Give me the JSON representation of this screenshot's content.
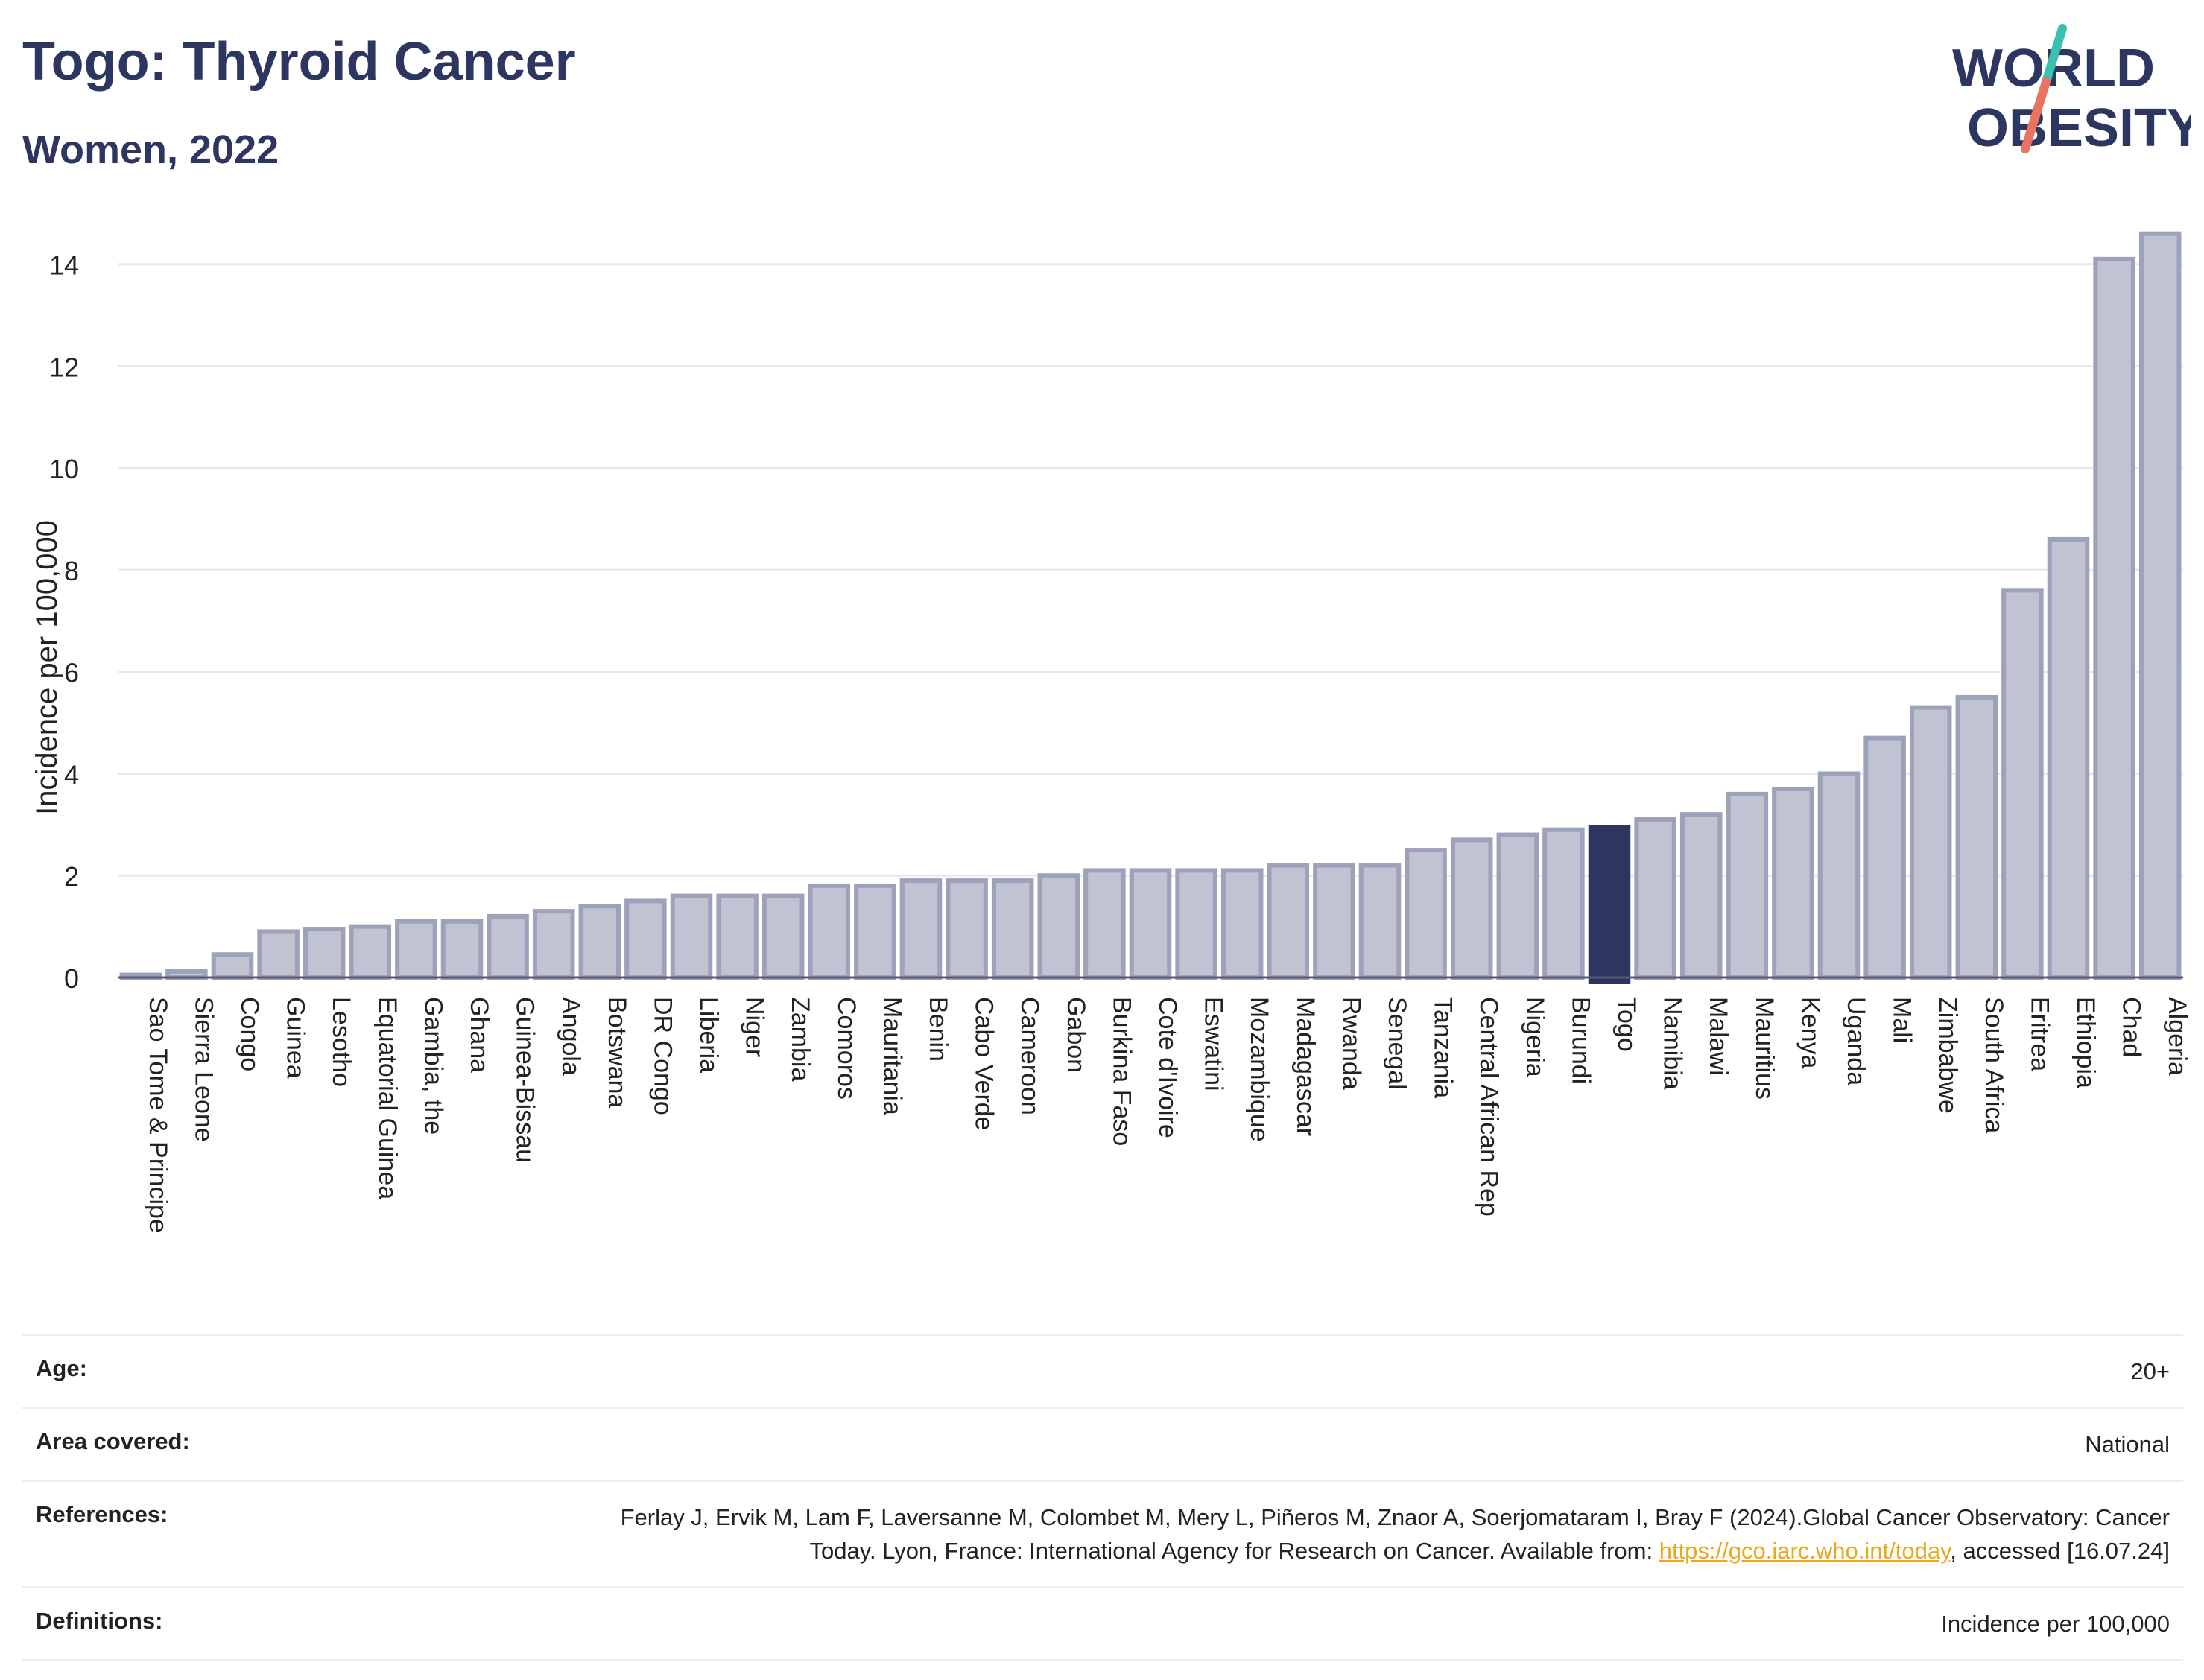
{
  "header": {
    "title": "Togo: Thyroid Cancer",
    "subtitle": "Women, 2022"
  },
  "logo": {
    "line1": "WORLD",
    "line2": "OBESITY",
    "colors": {
      "text": "#2d3561",
      "slash_top": "#3bbfb0",
      "slash_bottom": "#e8735e"
    }
  },
  "colors": {
    "bar_fill": "#c0c3d2",
    "bar_stroke": "#9da2bb",
    "highlight": "#2d3561",
    "grid": "#e8e8ee",
    "text": "#2d3561"
  },
  "chart_data": {
    "type": "bar",
    "ylabel": "Incidence per 100,000",
    "ylim": [
      0,
      14.8
    ],
    "yticks": [
      0,
      2,
      4,
      6,
      8,
      10,
      12,
      14
    ],
    "grid": true,
    "highlight": "Togo",
    "categories": [
      "Sao Tome & Principe",
      "Sierra Leone",
      "Congo",
      "Guinea",
      "Lesotho",
      "Equatorial Guinea",
      "Gambia, the",
      "Ghana",
      "Guinea-Bissau",
      "Angola",
      "Botswana",
      "DR Congo",
      "Liberia",
      "Niger",
      "Zambia",
      "Comoros",
      "Mauritania",
      "Benin",
      "Cabo Verde",
      "Cameroon",
      "Gabon",
      "Burkina Faso",
      "Cote d'Ivoire",
      "Eswatini",
      "Mozambique",
      "Madagascar",
      "Rwanda",
      "Senegal",
      "Tanzania",
      "Central African Rep",
      "Nigeria",
      "Burundi",
      "Togo",
      "Namibia",
      "Malawi",
      "Mauritius",
      "Kenya",
      "Uganda",
      "Mali",
      "Zimbabwe",
      "South Africa",
      "Eritrea",
      "Ethiopia",
      "Chad",
      "Algeria"
    ],
    "values": [
      0.05,
      0.12,
      0.45,
      0.9,
      0.95,
      1.0,
      1.1,
      1.1,
      1.2,
      1.3,
      1.4,
      1.5,
      1.6,
      1.6,
      1.6,
      1.8,
      1.8,
      1.9,
      1.9,
      1.9,
      2.0,
      2.1,
      2.1,
      2.1,
      2.1,
      2.2,
      2.2,
      2.2,
      2.5,
      2.7,
      2.8,
      2.9,
      2.95,
      3.1,
      3.2,
      3.6,
      3.7,
      4.0,
      4.7,
      5.3,
      5.5,
      7.6,
      8.6,
      14.1,
      14.6
    ]
  },
  "meta": {
    "rows": [
      {
        "label": "Age:",
        "value": "20+"
      },
      {
        "label": "Area covered:",
        "value": "National"
      },
      {
        "label": "References:",
        "value_pre": "Ferlay J, Ervik M, Lam F, Laversanne M, Colombet M, Mery L, Piñeros M, Znaor A, Soerjomataram I, Bray F (2024).Global Cancer Observatory: Cancer Today. Lyon, France: International Agency for Research on Cancer. Available from: ",
        "link": "https://gco.iarc.who.int/today",
        "value_post": ", accessed [16.07.24]"
      },
      {
        "label": "Definitions:",
        "value": "Incidence per 100,000"
      }
    ]
  }
}
